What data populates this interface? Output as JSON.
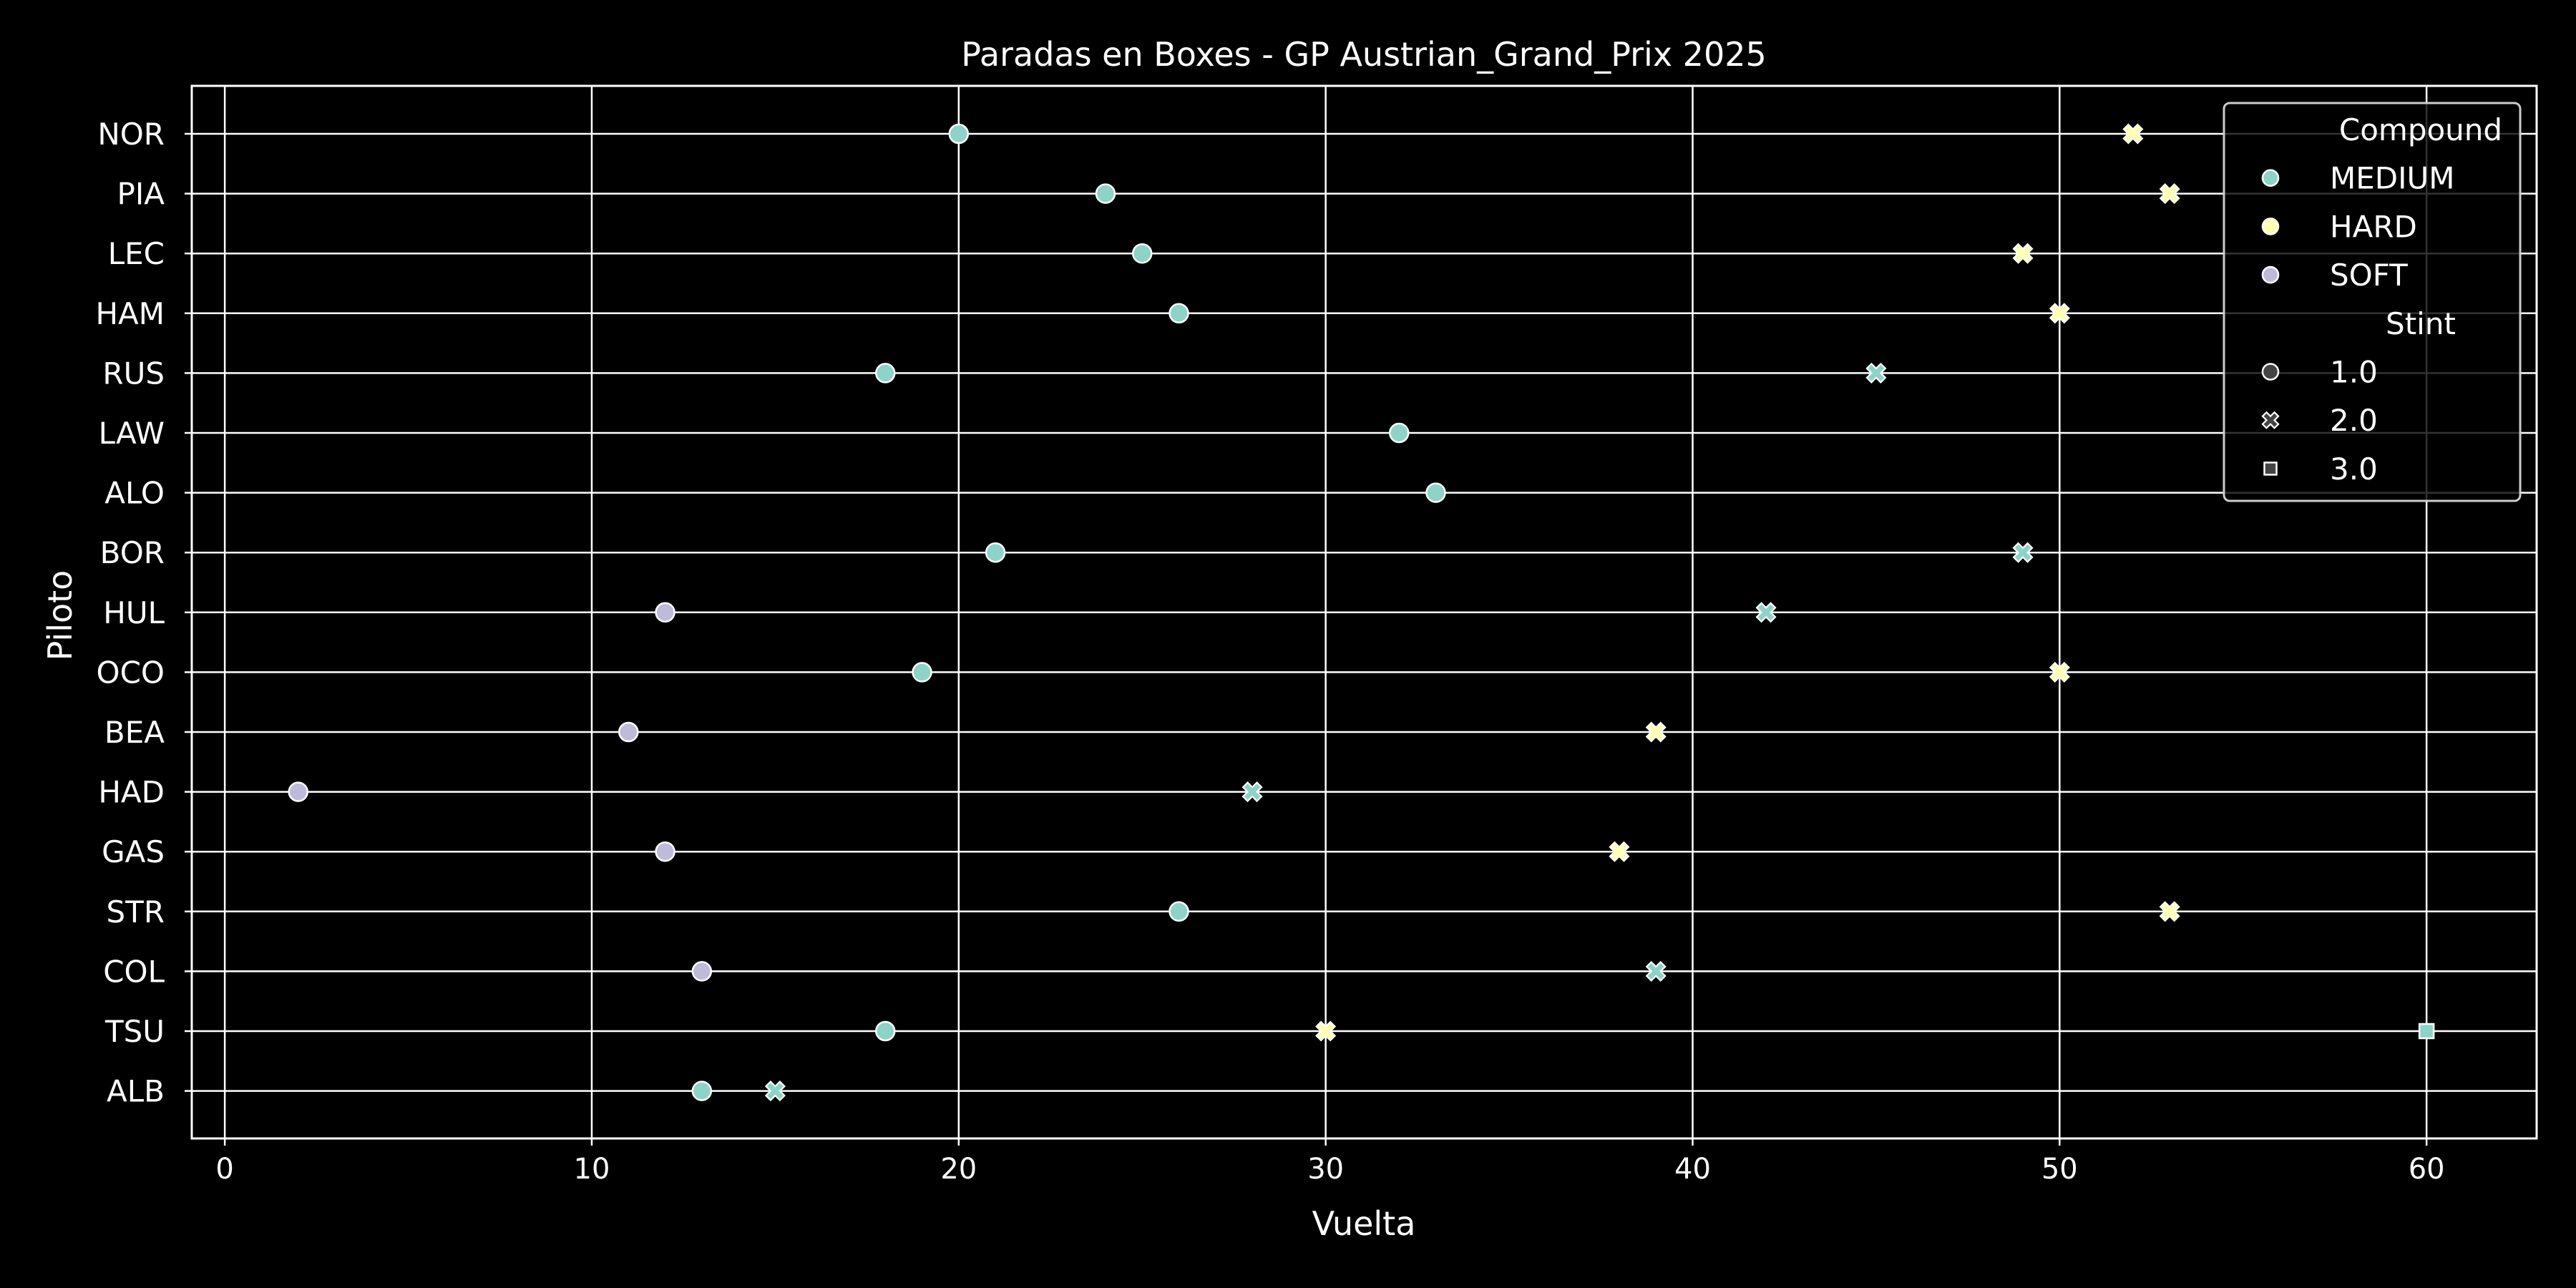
{
  "chart_data": {
    "type": "scatter",
    "title": "Paradas en Boxes - GP Austrian_Grand_Prix 2025",
    "xlabel": "Vuelta",
    "ylabel": "Piloto",
    "xlim": [
      -0.9,
      63
    ],
    "xticks": [
      0,
      10,
      20,
      30,
      40,
      50,
      60
    ],
    "grid": true,
    "legend_position": "top-right",
    "drivers": [
      "NOR",
      "PIA",
      "LEC",
      "HAM",
      "RUS",
      "LAW",
      "ALO",
      "BOR",
      "HUL",
      "OCO",
      "BEA",
      "HAD",
      "GAS",
      "STR",
      "COL",
      "TSU",
      "ALB"
    ],
    "compounds": [
      {
        "name": "MEDIUM",
        "color": "#8dd3c7"
      },
      {
        "name": "HARD",
        "color": "#ffffb3"
      },
      {
        "name": "SOFT",
        "color": "#bebada"
      }
    ],
    "stints": [
      {
        "name": "1.0",
        "marker": "circle"
      },
      {
        "name": "2.0",
        "marker": "x"
      },
      {
        "name": "3.0",
        "marker": "square"
      }
    ],
    "legend": {
      "compound_title": "Compound",
      "stint_title": "Stint"
    },
    "points": [
      {
        "driver": "NOR",
        "lap": 20,
        "compound": "MEDIUM",
        "stint": "1.0"
      },
      {
        "driver": "NOR",
        "lap": 52,
        "compound": "HARD",
        "stint": "2.0"
      },
      {
        "driver": "PIA",
        "lap": 24,
        "compound": "MEDIUM",
        "stint": "1.0"
      },
      {
        "driver": "PIA",
        "lap": 53,
        "compound": "HARD",
        "stint": "2.0"
      },
      {
        "driver": "LEC",
        "lap": 25,
        "compound": "MEDIUM",
        "stint": "1.0"
      },
      {
        "driver": "LEC",
        "lap": 49,
        "compound": "HARD",
        "stint": "2.0"
      },
      {
        "driver": "HAM",
        "lap": 26,
        "compound": "MEDIUM",
        "stint": "1.0"
      },
      {
        "driver": "HAM",
        "lap": 50,
        "compound": "HARD",
        "stint": "2.0"
      },
      {
        "driver": "RUS",
        "lap": 18,
        "compound": "MEDIUM",
        "stint": "1.0"
      },
      {
        "driver": "RUS",
        "lap": 45,
        "compound": "MEDIUM",
        "stint": "2.0"
      },
      {
        "driver": "LAW",
        "lap": 32,
        "compound": "MEDIUM",
        "stint": "1.0"
      },
      {
        "driver": "ALO",
        "lap": 33,
        "compound": "MEDIUM",
        "stint": "1.0"
      },
      {
        "driver": "BOR",
        "lap": 21,
        "compound": "MEDIUM",
        "stint": "1.0"
      },
      {
        "driver": "BOR",
        "lap": 49,
        "compound": "MEDIUM",
        "stint": "2.0"
      },
      {
        "driver": "HUL",
        "lap": 12,
        "compound": "SOFT",
        "stint": "1.0"
      },
      {
        "driver": "HUL",
        "lap": 42,
        "compound": "MEDIUM",
        "stint": "2.0"
      },
      {
        "driver": "OCO",
        "lap": 19,
        "compound": "MEDIUM",
        "stint": "1.0"
      },
      {
        "driver": "OCO",
        "lap": 50,
        "compound": "HARD",
        "stint": "2.0"
      },
      {
        "driver": "BEA",
        "lap": 11,
        "compound": "SOFT",
        "stint": "1.0"
      },
      {
        "driver": "BEA",
        "lap": 39,
        "compound": "HARD",
        "stint": "2.0"
      },
      {
        "driver": "HAD",
        "lap": 2,
        "compound": "SOFT",
        "stint": "1.0"
      },
      {
        "driver": "HAD",
        "lap": 28,
        "compound": "MEDIUM",
        "stint": "2.0"
      },
      {
        "driver": "GAS",
        "lap": 12,
        "compound": "SOFT",
        "stint": "1.0"
      },
      {
        "driver": "GAS",
        "lap": 38,
        "compound": "HARD",
        "stint": "2.0"
      },
      {
        "driver": "STR",
        "lap": 26,
        "compound": "MEDIUM",
        "stint": "1.0"
      },
      {
        "driver": "STR",
        "lap": 53,
        "compound": "HARD",
        "stint": "2.0"
      },
      {
        "driver": "COL",
        "lap": 13,
        "compound": "SOFT",
        "stint": "1.0"
      },
      {
        "driver": "COL",
        "lap": 39,
        "compound": "MEDIUM",
        "stint": "2.0"
      },
      {
        "driver": "TSU",
        "lap": 18,
        "compound": "MEDIUM",
        "stint": "1.0"
      },
      {
        "driver": "TSU",
        "lap": 30,
        "compound": "HARD",
        "stint": "2.0"
      },
      {
        "driver": "TSU",
        "lap": 60,
        "compound": "MEDIUM",
        "stint": "3.0"
      },
      {
        "driver": "ALB",
        "lap": 13,
        "compound": "MEDIUM",
        "stint": "1.0"
      },
      {
        "driver": "ALB",
        "lap": 15,
        "compound": "MEDIUM",
        "stint": "2.0"
      }
    ]
  }
}
